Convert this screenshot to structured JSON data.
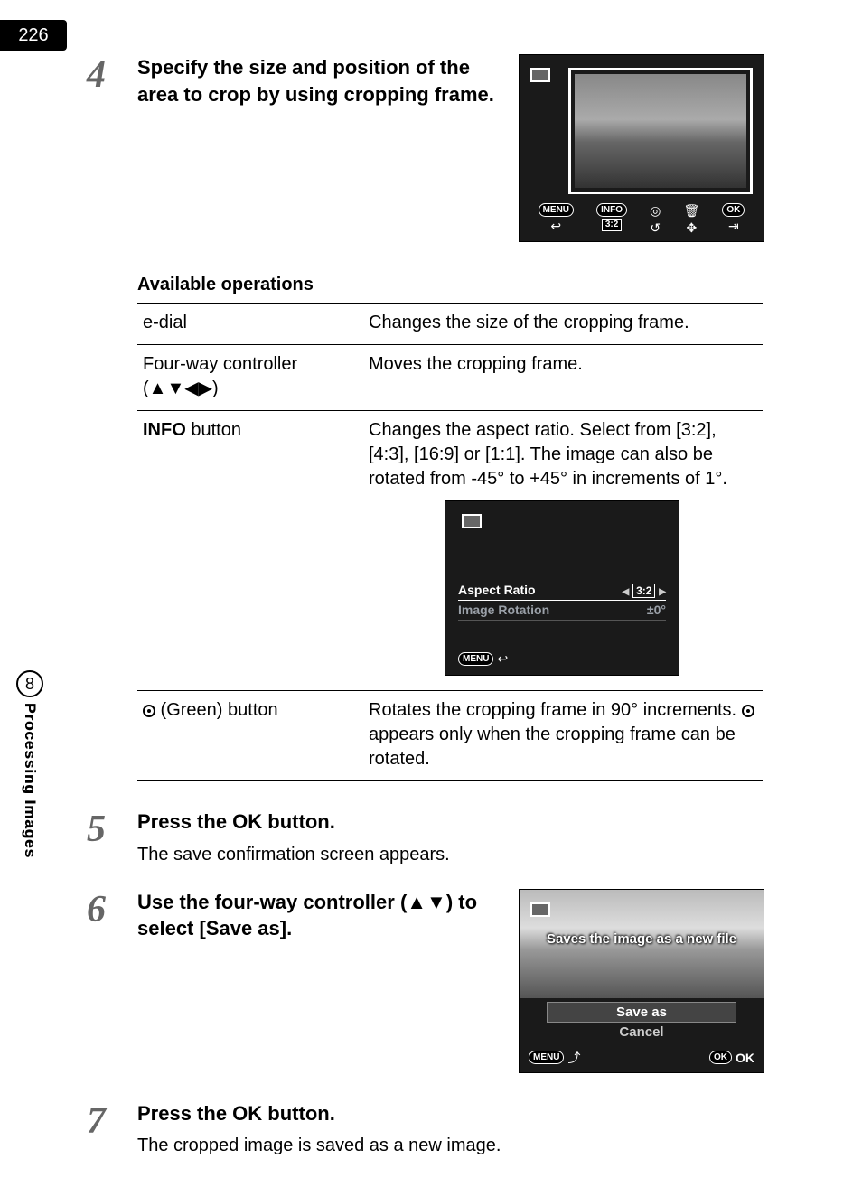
{
  "page": {
    "number": "226"
  },
  "side_tab": {
    "chapter": "8",
    "title": "Processing Images"
  },
  "step4": {
    "num": "4",
    "heading": "Specify the size and position of the area to crop by using cropping frame.",
    "lcd_icons": {
      "menu": "MENU",
      "info": "INFO",
      "ratio": "3:2",
      "ok": "OK"
    }
  },
  "ops": {
    "heading": "Available operations",
    "rows": [
      {
        "control": "e-dial",
        "desc": "Changes the size of the cropping frame."
      },
      {
        "control": "Four-way controller (▲▼◀▶)",
        "desc": "Moves the cropping frame."
      },
      {
        "control_label": "INFO",
        "control_suffix": " button",
        "desc": "Changes the aspect ratio. Select from [3:2], [4:3], [16:9] or [1:1]. The image can also be rotated from -45° to +45° in increments of 1°."
      },
      {
        "control_green": true,
        "control_suffix": " (Green) button",
        "desc_a": "Rotates the cropping frame in 90° increments. ",
        "desc_b": " appears only when the cropping frame can be rotated."
      }
    ],
    "lcd2": {
      "row1_label": "Aspect Ratio",
      "row1_value": "3:2",
      "row2_label": "Image Rotation",
      "row2_value": "±0°",
      "menu": "MENU"
    }
  },
  "step5": {
    "num": "5",
    "heading_a": "Press the ",
    "heading_b": "OK",
    "heading_c": " button.",
    "desc": "The save confirmation screen appears."
  },
  "step6": {
    "num": "6",
    "heading": "Use the four-way controller (▲▼) to select [Save as].",
    "lcd": {
      "overlay": "Saves the image as a new file",
      "opt1": "Save as",
      "opt2": "Cancel",
      "menu": "MENU",
      "ok": "OK",
      "ok2": "OK"
    }
  },
  "step7": {
    "num": "7",
    "heading_a": "Press the ",
    "heading_b": "OK",
    "heading_c": " button.",
    "desc": "The cropped image is saved as a new image."
  }
}
